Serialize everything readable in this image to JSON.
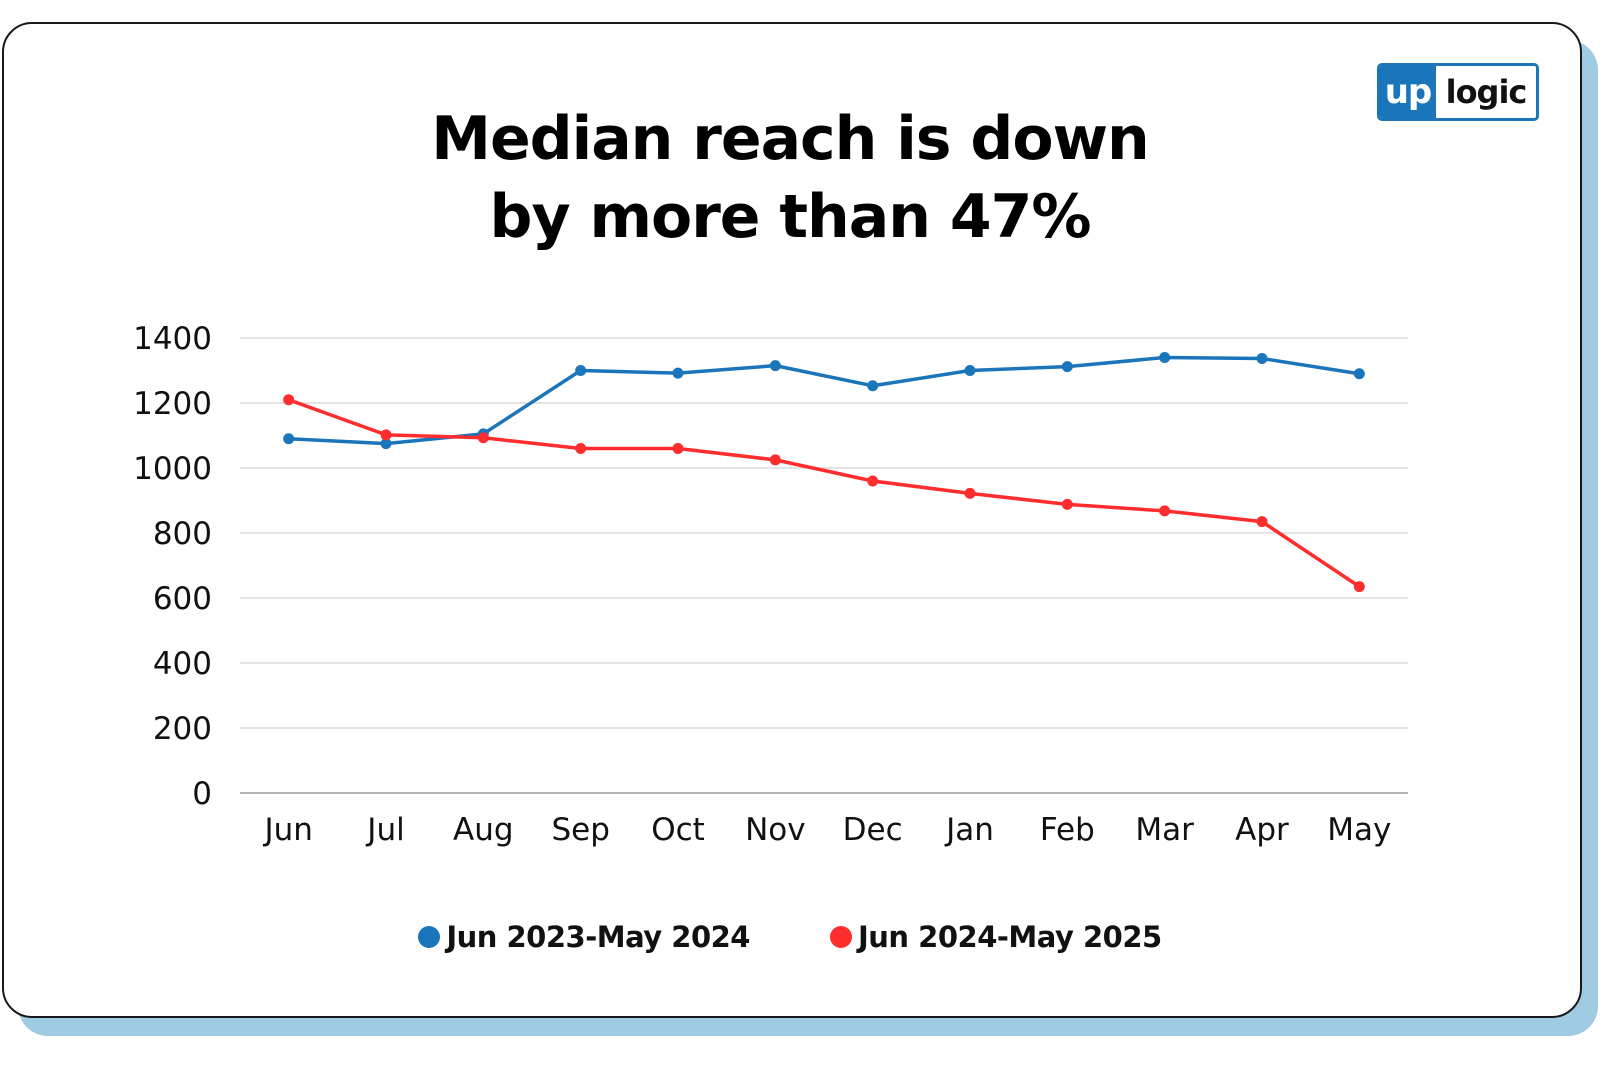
{
  "title_line1": "Median reach is down",
  "title_line2": "by more than 47%",
  "logo": {
    "part1": "up",
    "part2": "logic",
    "brand_color": "#1b75bb"
  },
  "chart_data": {
    "type": "line",
    "categories": [
      "Jun",
      "Jul",
      "Aug",
      "Sep",
      "Oct",
      "Nov",
      "Dec",
      "Jan",
      "Feb",
      "Mar",
      "Apr",
      "May"
    ],
    "ylim": [
      0,
      1400
    ],
    "yticks": [
      0,
      200,
      400,
      600,
      800,
      1000,
      1200,
      1400
    ],
    "grid": true,
    "legend": "bottom",
    "series": [
      {
        "name": "Jun 2023-May 2024",
        "color": "#1b75bb",
        "values": [
          1090,
          1075,
          1105,
          1300,
          1292,
          1315,
          1253,
          1300,
          1312,
          1340,
          1337,
          1290
        ]
      },
      {
        "name": "Jun 2024-May 2025",
        "color": "#ff2d2d",
        "values": [
          1210,
          1102,
          1093,
          1060,
          1060,
          1025,
          960,
          922,
          888,
          868,
          835,
          635
        ]
      }
    ]
  }
}
